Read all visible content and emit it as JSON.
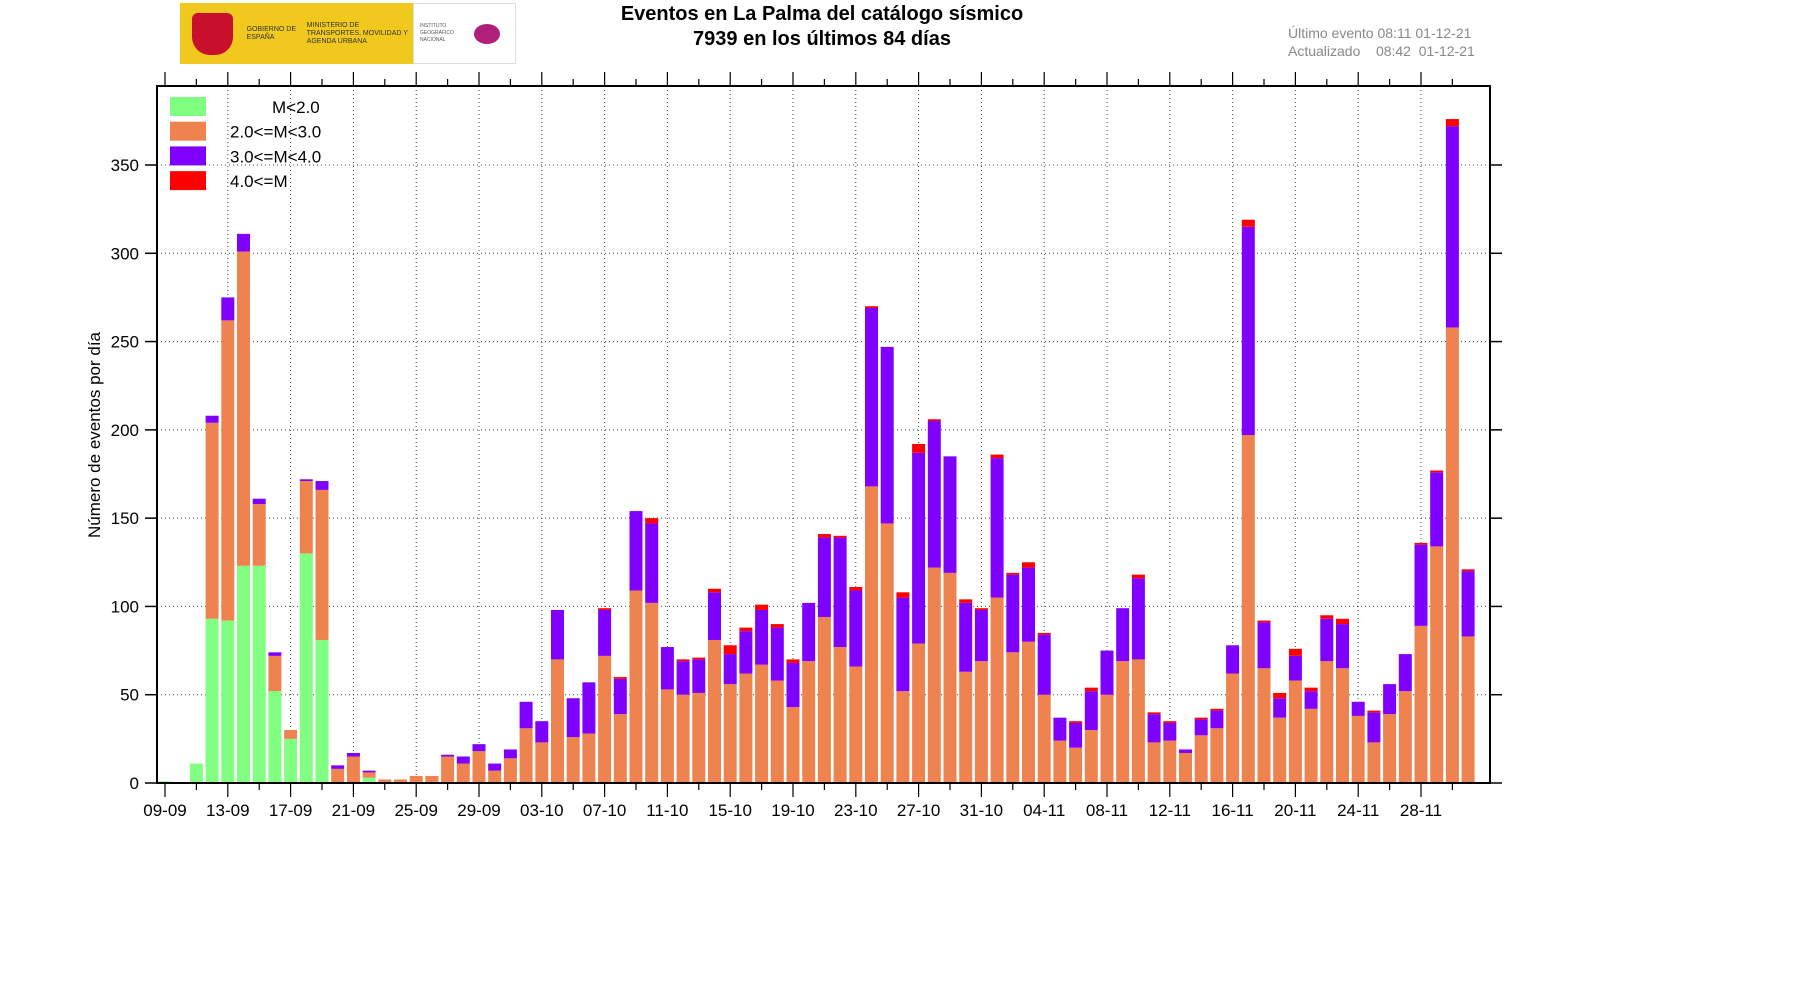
{
  "header": {
    "logo_gob": "GOBIERNO DE ESPAÑA",
    "logo_min": "MINISTERIO DE TRANSPORTES, MOVILIDAD Y AGENDA URBANA",
    "logo_ign": "INSTITUTO GEOGRÁFICO NACIONAL",
    "title": "Eventos en La Palma del catálogo sísmico",
    "subtitle": "7939 en los últimos 84 días",
    "last_event": "Último evento 08:11 01-12-21",
    "updated": "Actualizado    08:42  01-12-21"
  },
  "chart_data": {
    "type": "bar",
    "stacked": true,
    "title": "Eventos en La Palma del catálogo sísmico",
    "subtitle": "7939 en los últimos 84 días",
    "xlabel": "",
    "ylabel": "Número de eventos por día",
    "ylim": [
      0,
      380
    ],
    "yticks": [
      0,
      50,
      100,
      150,
      200,
      250,
      300,
      350
    ],
    "grid": true,
    "legend": "top-left",
    "categories": [
      "09-09",
      "10-09",
      "11-09",
      "12-09",
      "13-09",
      "14-09",
      "15-09",
      "16-09",
      "17-09",
      "18-09",
      "19-09",
      "20-09",
      "21-09",
      "22-09",
      "23-09",
      "24-09",
      "25-09",
      "26-09",
      "27-09",
      "28-09",
      "29-09",
      "30-09",
      "01-10",
      "02-10",
      "03-10",
      "04-10",
      "05-10",
      "06-10",
      "07-10",
      "08-10",
      "09-10",
      "10-10",
      "11-10",
      "12-10",
      "13-10",
      "14-10",
      "15-10",
      "16-10",
      "17-10",
      "18-10",
      "19-10",
      "20-10",
      "21-10",
      "22-10",
      "23-10",
      "24-10",
      "25-10",
      "26-10",
      "27-10",
      "28-10",
      "29-10",
      "30-10",
      "31-10",
      "01-11",
      "02-11",
      "03-11",
      "04-11",
      "05-11",
      "06-11",
      "07-11",
      "08-11",
      "09-11",
      "10-11",
      "11-11",
      "12-11",
      "13-11",
      "14-11",
      "15-11",
      "16-11",
      "17-11",
      "18-11",
      "19-11",
      "20-11",
      "21-11",
      "22-11",
      "23-11",
      "24-11",
      "25-11",
      "26-11",
      "27-11",
      "28-11",
      "29-11",
      "30-11",
      "01-12"
    ],
    "xtick_labels": [
      "09-09",
      "13-09",
      "17-09",
      "21-09",
      "25-09",
      "29-09",
      "03-10",
      "07-10",
      "11-10",
      "15-10",
      "19-10",
      "23-10",
      "27-10",
      "31-10",
      "04-11",
      "08-11",
      "12-11",
      "16-11",
      "20-11",
      "24-11",
      "28-11"
    ],
    "series": [
      {
        "name": "M<2.0",
        "color": "#80ff80",
        "values": [
          1,
          0,
          11,
          93,
          92,
          123,
          123,
          52,
          25,
          130,
          81,
          0,
          0,
          3,
          0,
          0,
          0,
          0,
          0,
          0,
          0,
          0,
          0,
          0,
          0,
          0,
          0,
          0,
          0,
          0,
          0,
          0,
          0,
          0,
          0,
          0,
          0,
          0,
          0,
          0,
          0,
          0,
          0,
          0,
          0,
          0,
          0,
          0,
          0,
          0,
          0,
          0,
          0,
          0,
          0,
          0,
          0,
          0,
          0,
          0,
          0,
          0,
          0,
          0,
          0,
          0,
          0,
          0,
          0,
          0,
          0,
          0,
          0,
          0,
          0,
          0,
          0,
          0,
          0,
          0,
          0,
          0,
          0,
          0
        ]
      },
      {
        "name": "2.0<=M<3.0",
        "color": "#ef8350",
        "values": [
          0,
          0,
          0,
          111,
          170,
          178,
          35,
          20,
          5,
          41,
          85,
          8,
          15,
          3,
          2,
          2,
          4,
          4,
          15,
          11,
          18,
          7,
          14,
          31,
          23,
          70,
          26,
          28,
          72,
          39,
          109,
          102,
          53,
          50,
          51,
          81,
          56,
          62,
          67,
          58,
          43,
          69,
          94,
          77,
          66,
          168,
          147,
          52,
          79,
          122,
          119,
          63,
          69,
          105,
          74,
          80,
          50,
          24,
          20,
          30,
          50,
          69,
          70,
          23,
          24,
          17,
          27,
          31,
          62,
          197,
          65,
          37,
          58,
          42,
          69,
          65,
          38,
          23,
          39,
          52,
          89,
          134,
          258,
          83
        ]
      },
      {
        "name": "3.0<=M<4.0",
        "color": "#8000ff",
        "values": [
          0,
          0,
          0,
          4,
          13,
          10,
          3,
          2,
          0,
          1,
          5,
          2,
          2,
          1,
          0,
          0,
          0,
          0,
          1,
          4,
          4,
          4,
          5,
          15,
          12,
          28,
          22,
          29,
          26,
          20,
          45,
          45,
          24,
          19,
          19,
          27,
          17,
          24,
          31,
          30,
          25,
          33,
          45,
          62,
          43,
          101,
          100,
          53,
          108,
          83,
          66,
          39,
          29,
          79,
          44,
          42,
          34,
          13,
          14,
          22,
          25,
          30,
          46,
          16,
          10,
          2,
          9,
          10,
          16,
          118,
          26,
          11,
          14,
          10,
          24,
          25,
          8,
          17,
          17,
          21,
          46,
          42,
          114,
          37
        ]
      },
      {
        "name": "4.0<=M",
        "color": "#ff0000",
        "values": [
          0,
          0,
          0,
          0,
          0,
          0,
          0,
          0,
          0,
          0,
          0,
          0,
          0,
          0,
          0,
          0,
          0,
          0,
          0,
          0,
          0,
          0,
          0,
          0,
          0,
          0,
          0,
          0,
          1,
          1,
          0,
          3,
          0,
          1,
          1,
          2,
          5,
          2,
          3,
          2,
          2,
          0,
          2,
          1,
          2,
          1,
          0,
          3,
          5,
          1,
          0,
          2,
          1,
          2,
          1,
          3,
          1,
          0,
          1,
          2,
          0,
          0,
          2,
          1,
          1,
          0,
          1,
          1,
          0,
          4,
          1,
          3,
          4,
          2,
          2,
          3,
          0,
          1,
          0,
          0,
          1,
          1,
          4,
          1
        ]
      }
    ]
  }
}
